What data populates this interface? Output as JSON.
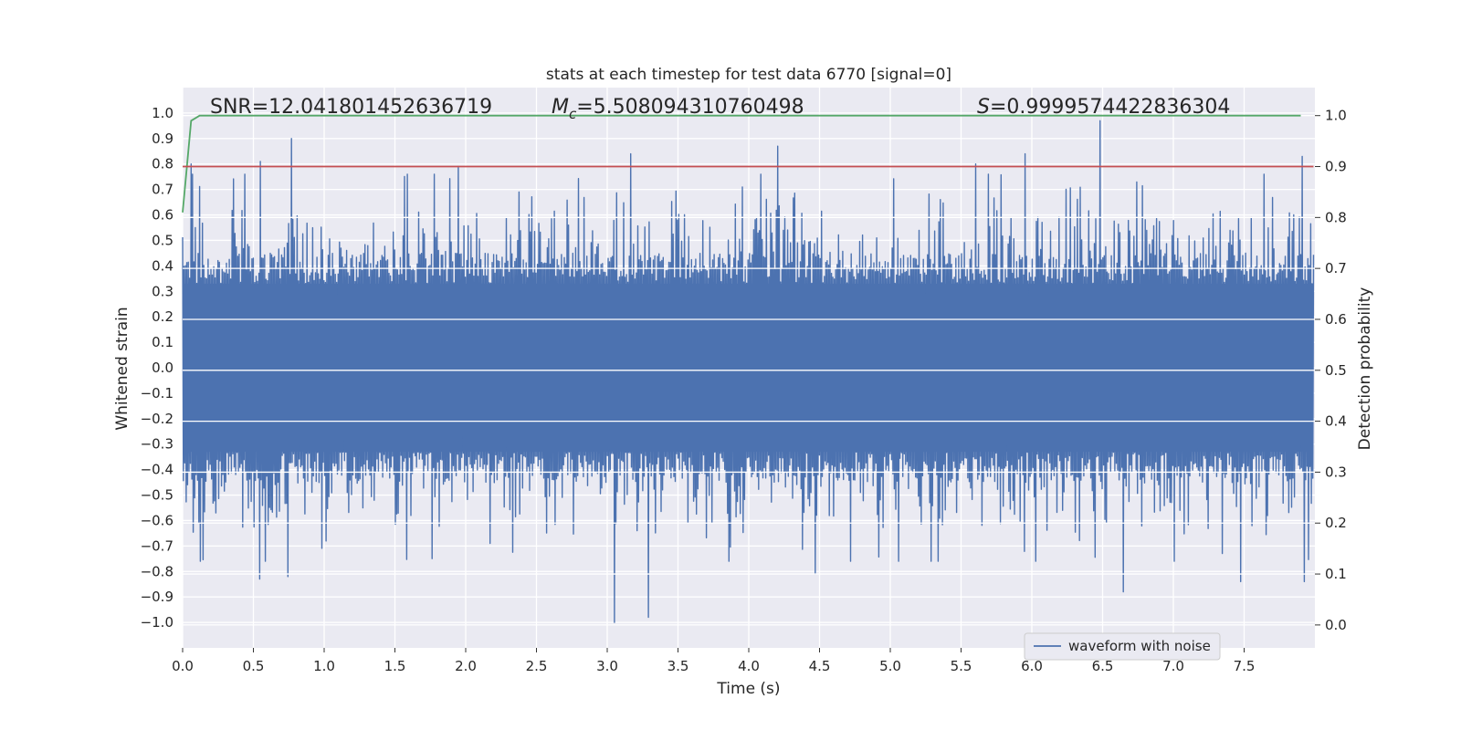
{
  "chart_data": {
    "type": "line",
    "title": "stats at each timestep for test data 6770 [signal=0]",
    "xlabel": "Time (s)",
    "ylabel": "Whitened strain",
    "y2label": "Detection probability",
    "xlim": [
      0.0,
      8.0
    ],
    "ylim": [
      -1.1,
      1.1
    ],
    "y2lim": [
      -0.045,
      1.055
    ],
    "xticks": [
      0.0,
      0.5,
      1.0,
      1.5,
      2.0,
      2.5,
      3.0,
      3.5,
      4.0,
      4.5,
      5.0,
      5.5,
      6.0,
      6.5,
      7.0,
      7.5
    ],
    "xtick_labels": [
      "0.0",
      "0.5",
      "1.0",
      "1.5",
      "2.0",
      "2.5",
      "3.0",
      "3.5",
      "4.0",
      "4.5",
      "5.0",
      "5.5",
      "6.0",
      "6.5",
      "7.0",
      "7.5"
    ],
    "yticks": [
      1.0,
      0.9,
      0.8,
      0.7,
      0.6,
      0.5,
      0.4,
      0.3,
      0.2,
      0.1,
      0.0,
      -0.1,
      -0.2,
      -0.3,
      -0.4,
      -0.5,
      -0.6,
      -0.7,
      -0.8,
      -0.9,
      -1.0
    ],
    "ytick_labels": [
      "1.0",
      "0.9",
      "0.8",
      "0.7",
      "0.6",
      "0.5",
      "0.4",
      "0.3",
      "0.2",
      "0.1",
      "0.0",
      "−0.1",
      "−0.2",
      "−0.3",
      "−0.4",
      "−0.5",
      "−0.6",
      "−0.7",
      "−0.8",
      "−0.9",
      "−1.0"
    ],
    "y2ticks": [
      1.0,
      0.9,
      0.8,
      0.7,
      0.6,
      0.5,
      0.4,
      0.3,
      0.2,
      0.1,
      0.0
    ],
    "y2tick_labels": [
      "1.0",
      "0.9",
      "0.8",
      "0.7",
      "0.6",
      "0.5",
      "0.4",
      "0.3",
      "0.2",
      "0.1",
      "0.0"
    ],
    "grid": true,
    "legend": {
      "position": "lower-right",
      "entries": [
        {
          "label": "waveform with noise",
          "color": "#4c72b0"
        }
      ]
    },
    "annotations": {
      "snr_prefix": "SNR=",
      "snr_value": "12.041801452636719",
      "mc_symbol": "M",
      "mc_sub": "c",
      "mc_eq": "=",
      "mc_value": "5.508094310760498",
      "s_symbol": "S",
      "s_eq": "=",
      "s_value": "0.9999574422836304"
    },
    "series": [
      {
        "name": "waveform with noise",
        "axis": "left",
        "color": "#4c72b0",
        "style": "dense noise waveform",
        "duration_s": 7.99,
        "core_envelope": 0.33,
        "peaks": [
          {
            "t": 0.06,
            "v": 0.8
          },
          {
            "t": 0.55,
            "v": 0.81
          },
          {
            "t": 0.77,
            "v": 0.9
          },
          {
            "t": 1.95,
            "v": 0.79
          },
          {
            "t": 3.17,
            "v": 0.84
          },
          {
            "t": 4.2,
            "v": 0.87
          },
          {
            "t": 5.6,
            "v": 0.8
          },
          {
            "t": 5.95,
            "v": 0.84
          },
          {
            "t": 6.48,
            "v": 0.97
          },
          {
            "t": 7.91,
            "v": 0.83
          },
          {
            "t": 3.05,
            "v": -1.0
          },
          {
            "t": 3.29,
            "v": -0.98
          },
          {
            "t": 0.54,
            "v": -0.83
          },
          {
            "t": 0.74,
            "v": -0.82
          },
          {
            "t": 4.47,
            "v": -0.81
          },
          {
            "t": 6.65,
            "v": -0.88
          },
          {
            "t": 7.48,
            "v": -0.84
          },
          {
            "t": 7.93,
            "v": -0.84
          }
        ]
      },
      {
        "name": "detection probability",
        "axis": "right",
        "color": "#55a868",
        "x": [
          0.0,
          0.03,
          0.06,
          0.12,
          0.3,
          1.0,
          4.0,
          7.9
        ],
        "y": [
          0.81,
          0.9,
          0.99,
          1.0,
          1.0,
          1.0,
          1.0,
          1.0
        ]
      },
      {
        "name": "detection threshold",
        "axis": "right",
        "color": "#c44e52",
        "x": [
          0.0,
          7.99
        ],
        "y": [
          0.9,
          0.9
        ]
      }
    ]
  }
}
